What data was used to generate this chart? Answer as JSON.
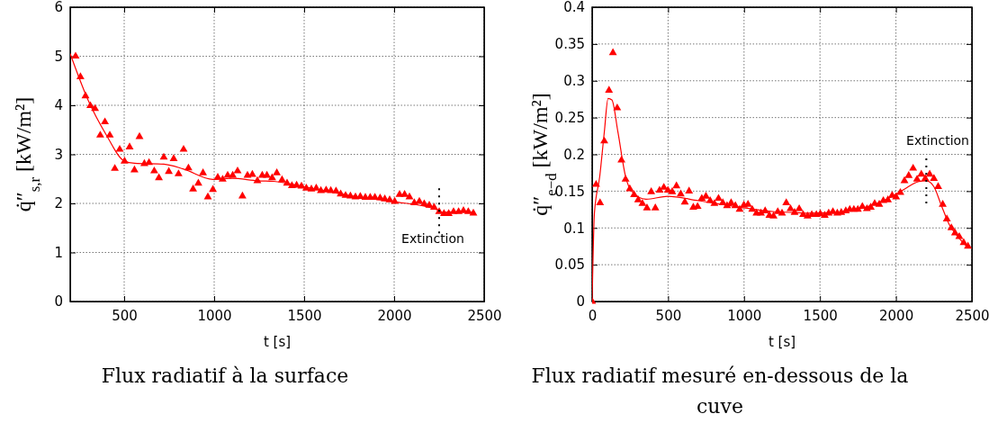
{
  "chart_data": [
    {
      "type": "scatter",
      "title": "Flux radiatif à la surface",
      "xlabel": "t [s]",
      "ylabel": "q̇″$_{s,r}$ [kW/m²]",
      "xlim": [
        200,
        2500
      ],
      "xticks": [
        500,
        1000,
        1500,
        2000,
        2500
      ],
      "ylim": [
        0,
        6
      ],
      "yticks": [
        0,
        1,
        2,
        3,
        4,
        5,
        6
      ],
      "grid": true,
      "annotations": [
        {
          "text": "Extinction",
          "x": 2250,
          "y": 1.85
        }
      ],
      "series": [
        {
          "marker": "triangle",
          "color": "#ff0000",
          "x": [
            230,
            257,
            285,
            312,
            338,
            367,
            393,
            420,
            448,
            475,
            502,
            530,
            557,
            585,
            612,
            638,
            667,
            693,
            720,
            748,
            775,
            802,
            830,
            857,
            883,
            912,
            938,
            965,
            993,
            1020,
            1047,
            1075,
            1103,
            1130,
            1157,
            1185,
            1212,
            1240,
            1267,
            1293,
            1322,
            1348,
            1377,
            1405,
            1432,
            1458,
            1485,
            1512,
            1540,
            1567,
            1593,
            1622,
            1648,
            1677,
            1703,
            1730,
            1757,
            1785,
            1812,
            1840,
            1867,
            1893,
            1922,
            1948,
            1975,
            2003,
            2030,
            2058,
            2085,
            2112,
            2140,
            2167,
            2195,
            2222,
            2250,
            2277,
            2303,
            2330,
            2358,
            2385,
            2412,
            2440
          ],
          "values": [
            5.0,
            4.58,
            4.19,
            3.99,
            3.93,
            3.39,
            3.66,
            3.39,
            2.71,
            3.1,
            2.86,
            3.15,
            2.68,
            3.36,
            2.81,
            2.83,
            2.66,
            2.52,
            2.94,
            2.65,
            2.91,
            2.6,
            3.1,
            2.72,
            2.29,
            2.41,
            2.62,
            2.13,
            2.28,
            2.53,
            2.49,
            2.57,
            2.57,
            2.66,
            2.15,
            2.57,
            2.59,
            2.46,
            2.57,
            2.57,
            2.52,
            2.62,
            2.48,
            2.41,
            2.36,
            2.37,
            2.35,
            2.31,
            2.29,
            2.31,
            2.26,
            2.27,
            2.26,
            2.25,
            2.19,
            2.16,
            2.15,
            2.13,
            2.14,
            2.12,
            2.12,
            2.12,
            2.11,
            2.09,
            2.07,
            2.04,
            2.18,
            2.18,
            2.13,
            2.01,
            2.04,
            1.99,
            1.96,
            1.92,
            1.83,
            1.79,
            1.79,
            1.83,
            1.83,
            1.85,
            1.83,
            1.8
          ]
        },
        {
          "type": "line",
          "marker": "none",
          "color": "#ff0000",
          "x": [
            200,
            300,
            400,
            502,
            557,
            720,
            830,
            993,
            1100,
            1245,
            1330,
            1500,
            1757,
            1990,
            2240,
            2260,
            2350,
            2440
          ],
          "values": [
            5.05,
            4.1,
            3.4,
            2.86,
            2.82,
            2.8,
            2.7,
            2.49,
            2.51,
            2.46,
            2.45,
            2.34,
            2.16,
            2.04,
            1.87,
            1.82,
            1.83,
            1.82
          ]
        }
      ]
    },
    {
      "type": "scatter",
      "title": "Flux radiatif mesuré en-dessous de la cuve",
      "xlabel": "t [s]",
      "ylabel": "q̇″$_{e−d}$ [kW/m²]",
      "xlim": [
        0,
        2500
      ],
      "xticks": [
        0,
        500,
        1000,
        1500,
        2000,
        2500
      ],
      "ylim": [
        0,
        0.4
      ],
      "yticks": [
        0,
        0.05,
        0.1,
        0.15,
        0.2,
        0.25,
        0.3,
        0.35,
        0.4
      ],
      "grid": true,
      "annotations": [
        {
          "text": "Extinction",
          "x": 2200,
          "y": 0.164
        }
      ],
      "series": [
        {
          "marker": "triangle",
          "color": "#ff0000",
          "x": [
            0,
            26,
            52,
            80,
            111,
            137,
            165,
            193,
            220,
            248,
            276,
            303,
            331,
            361,
            389,
            416,
            444,
            472,
            499,
            527,
            555,
            583,
            610,
            638,
            666,
            694,
            722,
            749,
            777,
            805,
            832,
            860,
            888,
            915,
            943,
            971,
            999,
            1026,
            1054,
            1082,
            1111,
            1139,
            1167,
            1194,
            1222,
            1250,
            1278,
            1306,
            1333,
            1363,
            1389,
            1418,
            1446,
            1476,
            1502,
            1531,
            1557,
            1585,
            1614,
            1640,
            1670,
            1696,
            1723,
            1749,
            1779,
            1809,
            1834,
            1860,
            1890,
            1917,
            1947,
            1975,
            2001,
            2029,
            2056,
            2084,
            2113,
            2139,
            2167,
            2193,
            2222,
            2250,
            2278,
            2308,
            2335,
            2365,
            2389,
            2417,
            2446,
            2474
          ],
          "values": [
            0,
            0.159,
            0.134,
            0.218,
            0.287,
            0.338,
            0.263,
            0.192,
            0.166,
            0.153,
            0.145,
            0.138,
            0.133,
            0.127,
            0.149,
            0.127,
            0.151,
            0.155,
            0.151,
            0.149,
            0.157,
            0.146,
            0.135,
            0.15,
            0.128,
            0.129,
            0.14,
            0.143,
            0.137,
            0.133,
            0.14,
            0.134,
            0.13,
            0.134,
            0.13,
            0.125,
            0.131,
            0.132,
            0.125,
            0.12,
            0.12,
            0.123,
            0.117,
            0.116,
            0.122,
            0.12,
            0.134,
            0.126,
            0.121,
            0.126,
            0.118,
            0.116,
            0.118,
            0.118,
            0.119,
            0.117,
            0.12,
            0.122,
            0.12,
            0.121,
            0.123,
            0.125,
            0.125,
            0.125,
            0.129,
            0.126,
            0.128,
            0.133,
            0.132,
            0.137,
            0.138,
            0.144,
            0.142,
            0.148,
            0.164,
            0.171,
            0.181,
            0.166,
            0.173,
            0.167,
            0.173,
            0.167,
            0.156,
            0.132,
            0.112,
            0.1,
            0.093,
            0.088,
            0.08,
            0.075
          ]
        },
        {
          "type": "line",
          "marker": "none",
          "color": "#ff0000",
          "x": [
            0,
            15,
            50,
            80,
            105,
            130,
            170,
            220,
            260,
            355,
            498,
            700,
            946,
            1200,
            1326,
            1400,
            1600,
            1800,
            1950,
            2050,
            2150,
            2200,
            2250,
            2300,
            2350,
            2400,
            2470
          ],
          "values": [
            0,
            0.12,
            0.17,
            0.23,
            0.276,
            0.274,
            0.23,
            0.17,
            0.15,
            0.139,
            0.143,
            0.137,
            0.129,
            0.122,
            0.121,
            0.12,
            0.121,
            0.128,
            0.14,
            0.152,
            0.163,
            0.164,
            0.156,
            0.13,
            0.105,
            0.09,
            0.074
          ]
        }
      ]
    }
  ]
}
